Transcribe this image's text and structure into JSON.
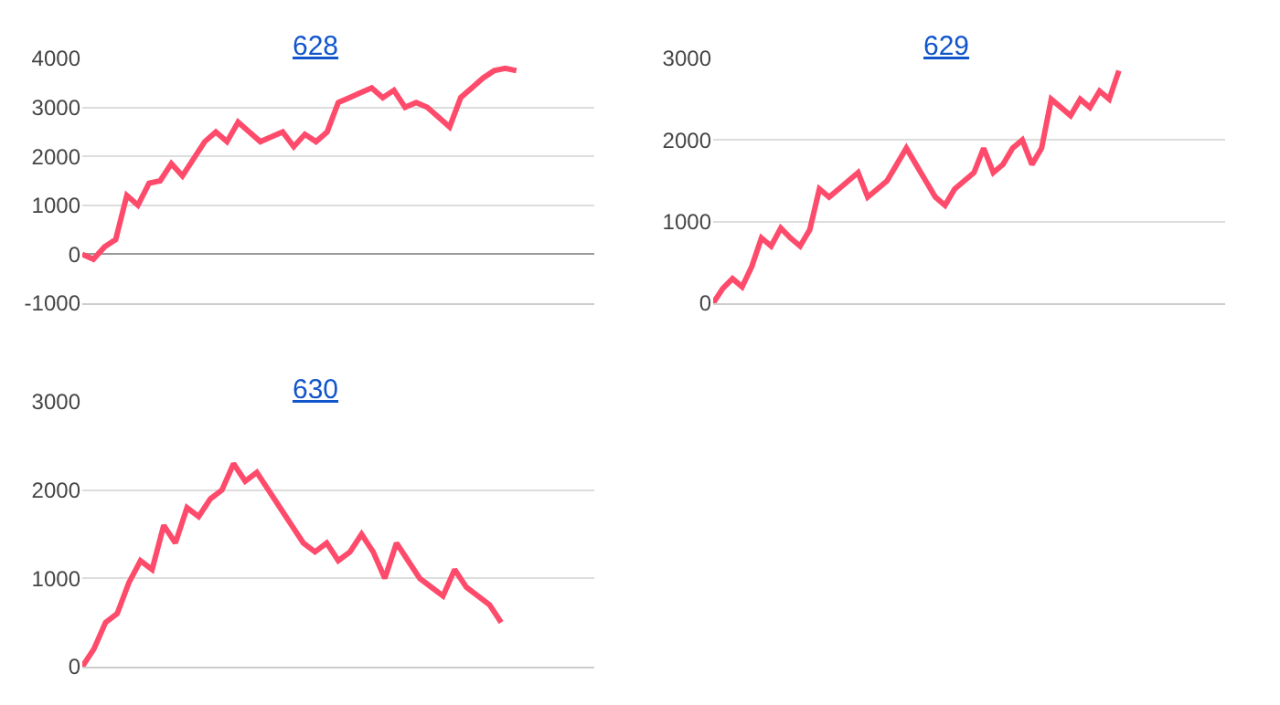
{
  "chart_data": [
    {
      "type": "line",
      "title": "628",
      "tick_labels": "y",
      "categories": [
        null,
        null,
        null,
        null,
        null,
        null,
        null,
        null,
        null,
        null,
        null,
        null,
        null,
        null,
        null,
        null,
        null,
        null,
        null,
        null,
        null,
        null,
        null,
        null,
        null,
        null,
        null,
        null,
        null,
        null,
        null,
        null,
        null,
        null,
        null,
        null,
        null,
        null,
        null,
        null,
        null,
        null,
        null,
        null,
        null,
        null,
        null
      ],
      "series": [
        {
          "color": "#ff4b6b",
          "values": [
            0,
            -100,
            150,
            300,
            1200,
            1000,
            1450,
            1500,
            1850,
            1600,
            1950,
            2300,
            2500,
            2300,
            2700,
            2500,
            2300,
            2400,
            2500,
            2200,
            2450,
            2300,
            2500,
            3100,
            3200,
            3300,
            3400,
            3200,
            3350,
            3000,
            3100,
            3000,
            2800,
            2600,
            3200,
            3400,
            3600,
            3750,
            3800,
            3750,
            null,
            null,
            null,
            null,
            null,
            null,
            null
          ]
        }
      ],
      "ylim": [
        -1000,
        4000
      ],
      "yticks": [
        -1000,
        0,
        1000,
        2000,
        3000,
        4000
      ],
      "grid": "y",
      "marker": "none",
      "line_style": "solid"
    },
    {
      "type": "line",
      "title": "629",
      "tick_labels": "y",
      "categories": [
        null,
        null,
        null,
        null,
        null,
        null,
        null,
        null,
        null,
        null,
        null,
        null,
        null,
        null,
        null,
        null,
        null,
        null,
        null,
        null,
        null,
        null,
        null,
        null,
        null,
        null,
        null,
        null,
        null,
        null,
        null,
        null,
        null,
        null,
        null,
        null,
        null,
        null,
        null,
        null,
        null,
        null,
        null,
        null,
        null,
        null,
        null,
        null,
        null,
        null,
        null,
        null,
        null,
        null
      ],
      "series": [
        {
          "color": "#ff4b6b",
          "values": [
            0,
            180,
            300,
            200,
            450,
            800,
            700,
            920,
            800,
            700,
            900,
            1400,
            1300,
            1400,
            1500,
            1600,
            1300,
            1400,
            1500,
            1700,
            1900,
            1700,
            1500,
            1300,
            1200,
            1400,
            1500,
            1600,
            1900,
            1600,
            1700,
            1900,
            2000,
            1700,
            1900,
            2500,
            2400,
            2300,
            2500,
            2400,
            2600,
            2500,
            2850,
            null,
            null,
            null,
            null,
            null,
            null,
            null,
            null,
            null,
            null,
            null
          ]
        }
      ],
      "ylim": [
        0,
        3000
      ],
      "yticks": [
        0,
        1000,
        2000,
        3000
      ],
      "grid": "y",
      "marker": "none",
      "line_style": "solid"
    },
    {
      "type": "line",
      "title": "630",
      "tick_labels": "y",
      "categories": [
        null,
        null,
        null,
        null,
        null,
        null,
        null,
        null,
        null,
        null,
        null,
        null,
        null,
        null,
        null,
        null,
        null,
        null,
        null,
        null,
        null,
        null,
        null,
        null,
        null,
        null,
        null,
        null,
        null,
        null,
        null,
        null,
        null,
        null,
        null,
        null,
        null,
        null,
        null,
        null,
        null,
        null,
        null,
        null,
        null
      ],
      "series": [
        {
          "color": "#ff4b6b",
          "values": [
            0,
            200,
            500,
            600,
            950,
            1200,
            1100,
            1600,
            1400,
            1800,
            1700,
            1900,
            2000,
            2300,
            2100,
            2200,
            2000,
            1800,
            1600,
            1400,
            1300,
            1400,
            1200,
            1300,
            1500,
            1300,
            1000,
            1400,
            1200,
            1000,
            900,
            800,
            1100,
            900,
            800,
            700,
            500,
            null,
            null,
            null,
            null,
            null,
            null,
            null,
            null
          ]
        }
      ],
      "ylim": [
        0,
        3000
      ],
      "yticks": [
        0,
        1000,
        2000,
        3000
      ],
      "grid": "y",
      "marker": "none",
      "line_style": "solid"
    }
  ]
}
